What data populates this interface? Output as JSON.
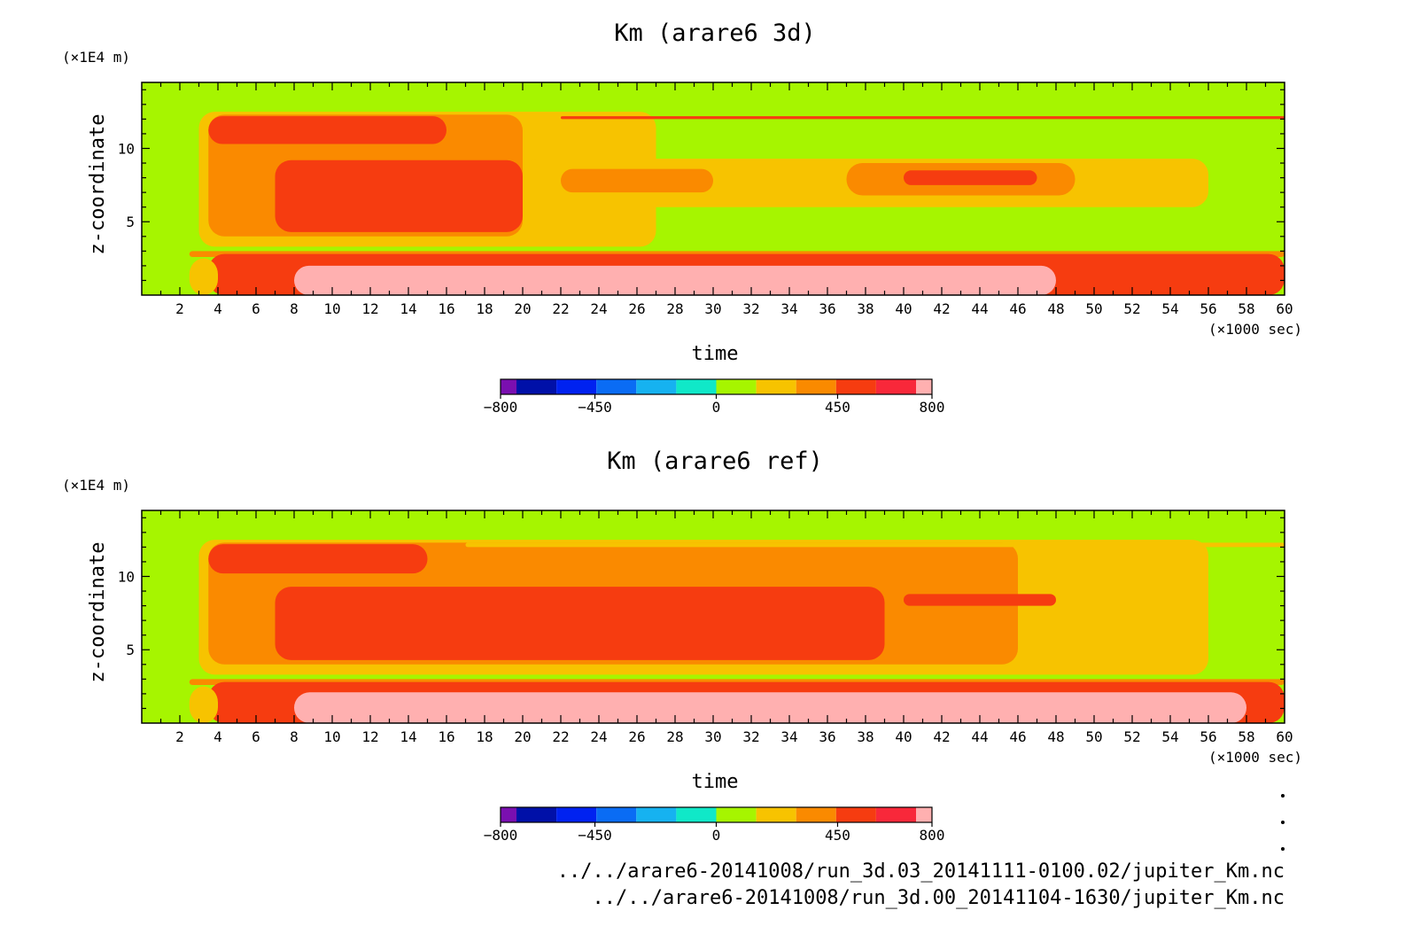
{
  "colors": {
    "levels": [
      "#7a0fb0",
      "#0010a8",
      "#0022f0",
      "#0a6cf4",
      "#16b2f0",
      "#10e8c8",
      "#a6f500",
      "#f7c300",
      "#fa8a00",
      "#f63c10",
      "#f8283a",
      "#ffb0b0"
    ],
    "frame": "#000000"
  },
  "chart_data": [
    {
      "type": "heatmap",
      "title": "Km (arare6 3d)",
      "xlabel": "time",
      "ylabel": "z-coordinate",
      "x_unit": "(×1000 sec)",
      "y_unit": "(×1E4 m)",
      "xlim": [
        0,
        60
      ],
      "ylim": [
        0,
        14.5
      ],
      "x_ticks": [
        2,
        4,
        6,
        8,
        10,
        12,
        14,
        16,
        18,
        20,
        22,
        24,
        26,
        28,
        30,
        32,
        34,
        36,
        38,
        40,
        42,
        44,
        46,
        48,
        50,
        52,
        54,
        56,
        58,
        60
      ],
      "y_ticks": [
        5,
        10
      ],
      "colorbar": {
        "range": [
          -800,
          800
        ],
        "ticks": [
          -800,
          -450,
          0,
          450,
          800
        ],
        "levels": 12
      },
      "regions": [
        {
          "level": 8,
          "x0": 2.5,
          "x1": 60,
          "y0": 2.6,
          "y1": 3.0
        },
        {
          "level": 9,
          "x0": 3.5,
          "x1": 60,
          "y0": 0,
          "y1": 2.8
        },
        {
          "level": 11,
          "x0": 8,
          "x1": 48,
          "y0": 0,
          "y1": 2.0
        },
        {
          "level": 7,
          "x0": 2.5,
          "x1": 4,
          "y0": 0,
          "y1": 2.5
        },
        {
          "level": 7,
          "x0": 3,
          "x1": 27,
          "y0": 3.3,
          "y1": 12.5
        },
        {
          "level": 8,
          "x0": 3.5,
          "x1": 20,
          "y0": 4.0,
          "y1": 12.3
        },
        {
          "level": 9,
          "x0": 7,
          "x1": 20,
          "y0": 4.3,
          "y1": 9.2
        },
        {
          "level": 7,
          "x0": 20,
          "x1": 56,
          "y0": 6.0,
          "y1": 9.3
        },
        {
          "level": 8,
          "x0": 22,
          "x1": 30,
          "y0": 7.0,
          "y1": 8.6
        },
        {
          "level": 8,
          "x0": 37,
          "x1": 49,
          "y0": 6.8,
          "y1": 9.0
        },
        {
          "level": 9,
          "x0": 40,
          "x1": 47,
          "y0": 7.5,
          "y1": 8.5
        },
        {
          "level": 9,
          "x0": 3.5,
          "x1": 16,
          "y0": 10.3,
          "y1": 12.2
        },
        {
          "level": 9,
          "x0": 22,
          "x1": 60,
          "y0": 12.0,
          "y1": 12.2
        }
      ]
    },
    {
      "type": "heatmap",
      "title": "Km (arare6 ref)",
      "xlabel": "time",
      "ylabel": "z-coordinate",
      "x_unit": "(×1000 sec)",
      "y_unit": "(×1E4 m)",
      "xlim": [
        0,
        60
      ],
      "ylim": [
        0,
        14.5
      ],
      "x_ticks": [
        2,
        4,
        6,
        8,
        10,
        12,
        14,
        16,
        18,
        20,
        22,
        24,
        26,
        28,
        30,
        32,
        34,
        36,
        38,
        40,
        42,
        44,
        46,
        48,
        50,
        52,
        54,
        56,
        58,
        60
      ],
      "y_ticks": [
        5,
        10
      ],
      "colorbar": {
        "range": [
          -800,
          800
        ],
        "ticks": [
          -800,
          -450,
          0,
          450,
          800
        ],
        "levels": 12
      },
      "regions": [
        {
          "level": 8,
          "x0": 2.5,
          "x1": 60,
          "y0": 2.6,
          "y1": 3.0
        },
        {
          "level": 9,
          "x0": 3.5,
          "x1": 60,
          "y0": 0,
          "y1": 2.8
        },
        {
          "level": 11,
          "x0": 8,
          "x1": 58,
          "y0": 0,
          "y1": 2.1
        },
        {
          "level": 7,
          "x0": 2.5,
          "x1": 4,
          "y0": 0,
          "y1": 2.5
        },
        {
          "level": 7,
          "x0": 3,
          "x1": 56,
          "y0": 3.3,
          "y1": 12.5
        },
        {
          "level": 8,
          "x0": 3.5,
          "x1": 46,
          "y0": 4.0,
          "y1": 12.3
        },
        {
          "level": 9,
          "x0": 7,
          "x1": 39,
          "y0": 4.3,
          "y1": 9.3
        },
        {
          "level": 9,
          "x0": 40,
          "x1": 48,
          "y0": 8.0,
          "y1": 8.8
        },
        {
          "level": 9,
          "x0": 3.5,
          "x1": 15,
          "y0": 10.2,
          "y1": 12.2
        },
        {
          "level": 7,
          "x0": 17,
          "x1": 60,
          "y0": 12.0,
          "y1": 12.3
        }
      ]
    }
  ],
  "footer": {
    "file1": "../../arare6-20141008/run_3d.03_20141111-0100.02/jupiter_Km.nc",
    "file2": "../../arare6-20141008/run_3d.00_20141104-1630/jupiter_Km.nc"
  }
}
